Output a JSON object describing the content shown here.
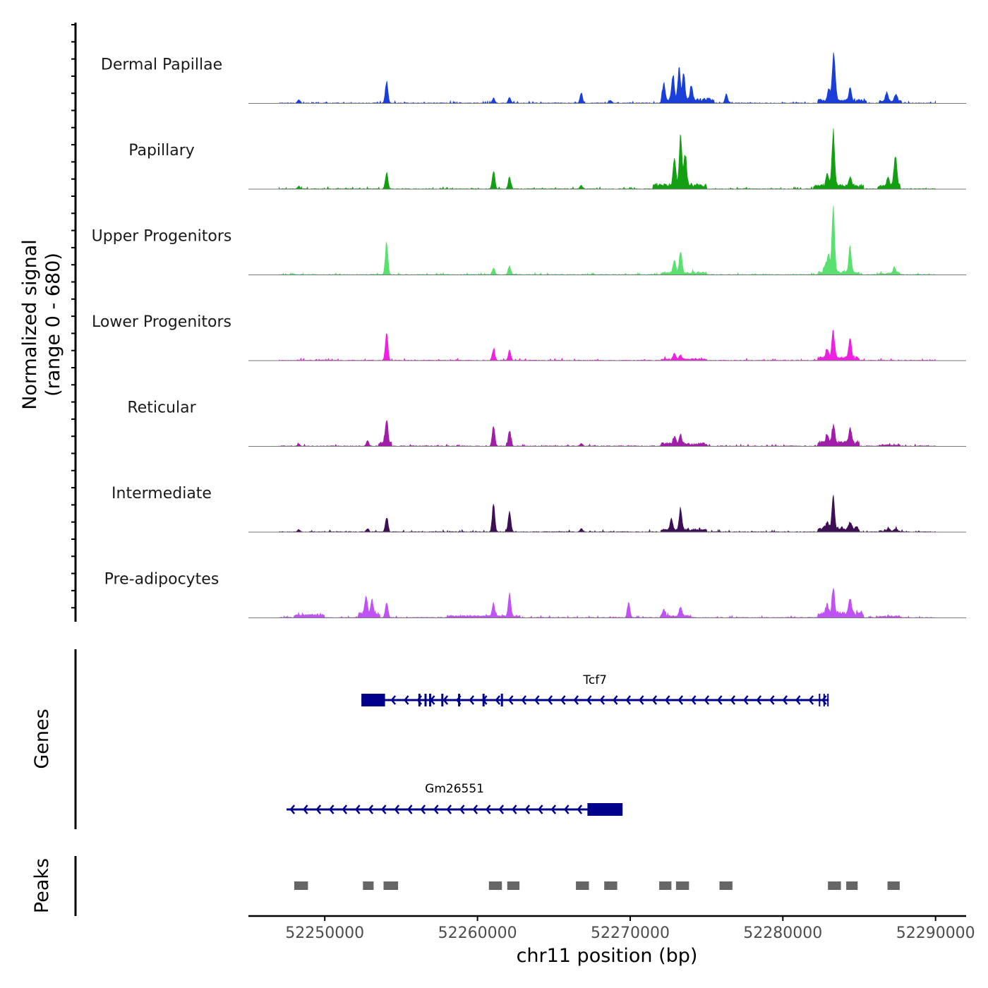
{
  "chart_data": {
    "type": "area",
    "chromosome": "chr11",
    "xlim": [
      52245000,
      52292000
    ],
    "x_ticks": [
      52250000,
      52260000,
      52270000,
      52280000,
      52290000
    ],
    "x_tick_labels": [
      "52250000",
      "52260000",
      "52270000",
      "52280000",
      "52290000"
    ],
    "xlabel": "chr11 position (bp)",
    "ylabel": "Normalized signal",
    "ylabel_range": "(range 0 - 680)",
    "ylim": [
      0,
      680
    ],
    "signal_start": 52247000,
    "signal_end": 52290000,
    "tracks": [
      {
        "name": "Dermal Papillae",
        "color": "#1a3fd8",
        "peaks": [
          [
            52248300,
            30
          ],
          [
            52254050,
            200
          ],
          [
            52261050,
            45
          ],
          [
            52262100,
            55
          ],
          [
            52266800,
            90
          ],
          [
            52268700,
            25
          ],
          [
            52272200,
            160
          ],
          [
            52272800,
            240
          ],
          [
            52273200,
            280
          ],
          [
            52273500,
            260
          ],
          [
            52274000,
            140
          ],
          [
            52276300,
            80
          ],
          [
            52283000,
            110
          ],
          [
            52283400,
            170
          ],
          [
            52283300,
            330
          ],
          [
            52284400,
            110
          ],
          [
            52286800,
            80
          ],
          [
            52287400,
            70
          ]
        ],
        "bumps": [
          [
            52272000,
            52275500,
            40
          ],
          [
            52282300,
            52285500,
            35
          ],
          [
            52286300,
            52287800,
            25
          ]
        ]
      },
      {
        "name": "Papillary",
        "color": "#12a012",
        "peaks": [
          [
            52248300,
            25
          ],
          [
            52254050,
            150
          ],
          [
            52261050,
            170
          ],
          [
            52262100,
            110
          ],
          [
            52266800,
            30
          ],
          [
            52272900,
            250
          ],
          [
            52273300,
            450
          ],
          [
            52273600,
            300
          ],
          [
            52283300,
            520
          ],
          [
            52282900,
            120
          ],
          [
            52284400,
            70
          ],
          [
            52286900,
            80
          ],
          [
            52287300,
            110
          ],
          [
            52287400,
            200
          ]
        ],
        "bumps": [
          [
            52271500,
            52275000,
            45
          ],
          [
            52282000,
            52285300,
            40
          ],
          [
            52286200,
            52287700,
            40
          ]
        ]
      },
      {
        "name": "Upper Progenitors",
        "color": "#5ae070",
        "peaks": [
          [
            52254050,
            300
          ],
          [
            52261050,
            60
          ],
          [
            52262100,
            80
          ],
          [
            52272900,
            120
          ],
          [
            52273300,
            200
          ],
          [
            52283300,
            600
          ],
          [
            52283000,
            160
          ],
          [
            52282800,
            80
          ],
          [
            52284400,
            230
          ],
          [
            52287300,
            60
          ]
        ],
        "bumps": [
          [
            52272000,
            52275000,
            25
          ],
          [
            52282300,
            52285000,
            30
          ],
          [
            52286300,
            52287700,
            15
          ]
        ]
      },
      {
        "name": "Lower Progenitors",
        "color": "#f020e0",
        "peaks": [
          [
            52254050,
            250
          ],
          [
            52261050,
            100
          ],
          [
            52262100,
            90
          ],
          [
            52272900,
            55
          ],
          [
            52273300,
            35
          ],
          [
            52283300,
            250
          ],
          [
            52282900,
            90
          ],
          [
            52284400,
            180
          ]
        ],
        "bumps": [
          [
            52272000,
            52275000,
            15
          ],
          [
            52282300,
            52285000,
            35
          ]
        ]
      },
      {
        "name": "Reticular",
        "color": "#a11ea9",
        "peaks": [
          [
            52248300,
            20
          ],
          [
            52252800,
            50
          ],
          [
            52254050,
            220
          ],
          [
            52261050,
            190
          ],
          [
            52262100,
            150
          ],
          [
            52266800,
            25
          ],
          [
            52272900,
            70
          ],
          [
            52273300,
            90
          ],
          [
            52283300,
            170
          ],
          [
            52282900,
            80
          ],
          [
            52284400,
            140
          ]
        ],
        "bumps": [
          [
            52253500,
            52254400,
            40
          ],
          [
            52272000,
            52275000,
            30
          ],
          [
            52282300,
            52285000,
            45
          ],
          [
            52286300,
            52287700,
            12
          ]
        ]
      },
      {
        "name": "Intermediate",
        "color": "#3d0f55",
        "peaks": [
          [
            52248300,
            20
          ],
          [
            52252800,
            30
          ],
          [
            52254050,
            140
          ],
          [
            52261050,
            250
          ],
          [
            52262100,
            190
          ],
          [
            52266800,
            30
          ],
          [
            52272700,
            110
          ],
          [
            52273300,
            200
          ],
          [
            52283300,
            290
          ],
          [
            52282900,
            60
          ],
          [
            52284400,
            50
          ],
          [
            52286900,
            25
          ],
          [
            52287400,
            20
          ]
        ],
        "bumps": [
          [
            52272000,
            52275000,
            25
          ],
          [
            52282300,
            52285000,
            45
          ],
          [
            52286300,
            52287700,
            12
          ]
        ]
      },
      {
        "name": "Pre-adipocytes",
        "color": "#c052f5",
        "peaks": [
          [
            52252700,
            160
          ],
          [
            52253100,
            120
          ],
          [
            52254050,
            140
          ],
          [
            52261050,
            110
          ],
          [
            52262100,
            200
          ],
          [
            52269900,
            140
          ],
          [
            52272200,
            60
          ],
          [
            52273300,
            90
          ],
          [
            52283300,
            240
          ],
          [
            52282900,
            90
          ],
          [
            52284400,
            140
          ]
        ],
        "bumps": [
          [
            52248000,
            52250000,
            30
          ],
          [
            52252200,
            52253600,
            50
          ],
          [
            52258000,
            52262800,
            20
          ],
          [
            52272000,
            52274000,
            20
          ],
          [
            52282300,
            52285300,
            50
          ],
          [
            52286300,
            52287700,
            15
          ]
        ]
      }
    ],
    "genes_ylabel": "Genes",
    "genes": [
      {
        "name": "Tcf7",
        "strand": "-",
        "start": 52252400,
        "end": 52283000,
        "color": "#00008b",
        "utr": [
          52252400,
          52253950
        ],
        "exons": [
          52256200,
          52256600,
          52256900,
          52257700,
          52258800,
          52260400,
          52261600
        ],
        "tss_ticks": [
          52282400,
          52282700,
          52282950
        ]
      },
      {
        "name": "Gm26551",
        "strand": "-",
        "start": 52247500,
        "end": 52269500,
        "color": "#00008b",
        "utr": [
          52267200,
          52269500
        ],
        "exons": [],
        "tss_ticks": []
      }
    ],
    "peaks_ylabel": "Peaks",
    "peak_regions": [
      [
        52248000,
        52248900
      ],
      [
        52252500,
        52253200
      ],
      [
        52253850,
        52254800
      ],
      [
        52260750,
        52261600
      ],
      [
        52261950,
        52262750
      ],
      [
        52266450,
        52267300
      ],
      [
        52268300,
        52269150
      ],
      [
        52271900,
        52272700
      ],
      [
        52273000,
        52273850
      ],
      [
        52275850,
        52276700
      ],
      [
        52282950,
        52283800
      ],
      [
        52284150,
        52284900
      ],
      [
        52286850,
        52287650
      ]
    ],
    "peak_color": "#666666"
  }
}
